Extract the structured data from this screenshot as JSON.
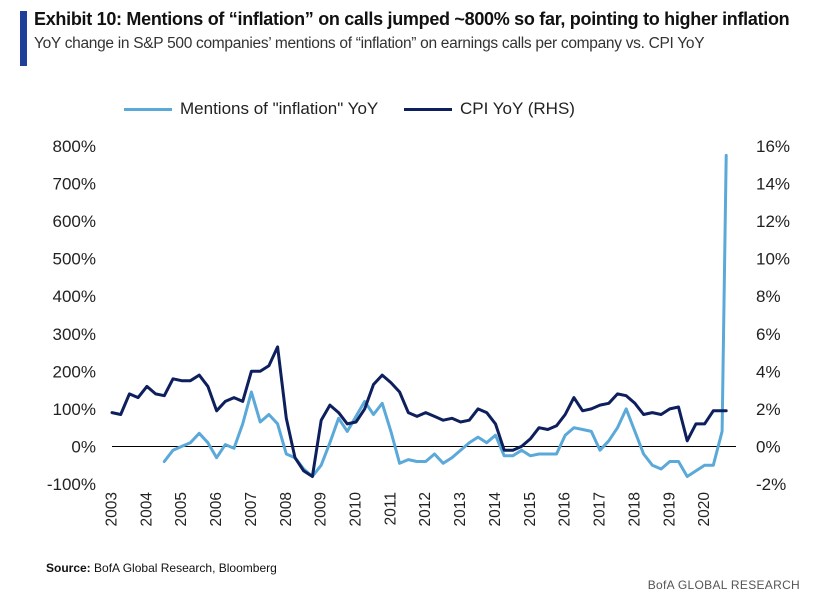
{
  "header": {
    "title": "Exhibit 10: Mentions of “inflation” on calls jumped ~800% so far, pointing to higher inflation",
    "subtitle": "YoY change in S&P 500 companies’ mentions of “inflation” on earnings calls per company vs. CPI YoY"
  },
  "footer": {
    "source_label": "Source:",
    "source_text": "BofA Global Research, Bloomberg",
    "brand": "BofA GLOBAL RESEARCH"
  },
  "colors": {
    "mentions": "#5aa9d9",
    "cpi": "#0d1f5c",
    "accent": "#1f3f99"
  },
  "chart_data": {
    "type": "line",
    "title": "",
    "xlabel": "",
    "ylabel": "",
    "x_ticks": [
      "2003",
      "2004",
      "2005",
      "2006",
      "2007",
      "2008",
      "2009",
      "2010",
      "2011",
      "2012",
      "2013",
      "2014",
      "2015",
      "2016",
      "2017",
      "2018",
      "2019",
      "2020"
    ],
    "xlim": [
      2003,
      2020.9
    ],
    "y_left": {
      "range": [
        -100,
        800
      ],
      "ticks": [
        -100,
        0,
        100,
        200,
        300,
        400,
        500,
        600,
        700,
        800
      ],
      "tick_labels": [
        "-100%",
        "0%",
        "100%",
        "200%",
        "300%",
        "400%",
        "500%",
        "600%",
        "700%",
        "800%"
      ]
    },
    "y_right": {
      "range": [
        -2,
        16
      ],
      "ticks": [
        -2,
        0,
        2,
        4,
        6,
        8,
        10,
        12,
        14,
        16
      ],
      "tick_labels": [
        "-2%",
        "0%",
        "2%",
        "4%",
        "6%",
        "8%",
        "10%",
        "12%",
        "14%",
        "16%"
      ]
    },
    "legend": {
      "position": "top"
    },
    "series": [
      {
        "name": "Mentions of \"inflation\" YoY",
        "axis": "left",
        "x": [
          2004.5,
          2004.75,
          2005.0,
          2005.25,
          2005.5,
          2005.75,
          2006.0,
          2006.25,
          2006.5,
          2006.75,
          2007.0,
          2007.25,
          2007.5,
          2007.75,
          2008.0,
          2008.25,
          2008.5,
          2008.75,
          2009.0,
          2009.25,
          2009.5,
          2009.75,
          2010.0,
          2010.25,
          2010.5,
          2010.75,
          2011.0,
          2011.25,
          2011.5,
          2011.75,
          2012.0,
          2012.25,
          2012.5,
          2012.75,
          2013.0,
          2013.25,
          2013.5,
          2013.75,
          2014.0,
          2014.25,
          2014.5,
          2014.75,
          2015.0,
          2015.25,
          2015.5,
          2015.75,
          2016.0,
          2016.25,
          2016.5,
          2016.75,
          2017.0,
          2017.25,
          2017.5,
          2017.75,
          2018.0,
          2018.25,
          2018.5,
          2018.75,
          2019.0,
          2019.25,
          2019.5,
          2019.75,
          2020.0,
          2020.25,
          2020.5,
          2020.62
        ],
        "y": [
          -40,
          -10,
          0,
          10,
          35,
          10,
          -30,
          5,
          -5,
          60,
          145,
          65,
          85,
          60,
          -20,
          -30,
          -60,
          -80,
          -50,
          10,
          75,
          40,
          80,
          120,
          85,
          115,
          40,
          -45,
          -35,
          -40,
          -40,
          -20,
          -45,
          -30,
          -10,
          10,
          25,
          10,
          30,
          -25,
          -25,
          -10,
          -25,
          -20,
          -20,
          -20,
          30,
          50,
          45,
          40,
          -10,
          15,
          50,
          100,
          40,
          -20,
          -50,
          -60,
          -40,
          -40,
          -80,
          -65,
          -50,
          -50,
          40,
          775
        ]
      },
      {
        "name": "CPI YoY (RHS)",
        "axis": "right",
        "x": [
          2003.0,
          2003.25,
          2003.5,
          2003.75,
          2004.0,
          2004.25,
          2004.5,
          2004.75,
          2005.0,
          2005.25,
          2005.5,
          2005.75,
          2006.0,
          2006.25,
          2006.5,
          2006.75,
          2007.0,
          2007.25,
          2007.5,
          2007.75,
          2008.0,
          2008.25,
          2008.5,
          2008.75,
          2009.0,
          2009.25,
          2009.5,
          2009.75,
          2010.0,
          2010.25,
          2010.5,
          2010.75,
          2011.0,
          2011.25,
          2011.5,
          2011.75,
          2012.0,
          2012.25,
          2012.5,
          2012.75,
          2013.0,
          2013.25,
          2013.5,
          2013.75,
          2014.0,
          2014.25,
          2014.5,
          2014.75,
          2015.0,
          2015.25,
          2015.5,
          2015.75,
          2016.0,
          2016.25,
          2016.5,
          2016.75,
          2017.0,
          2017.25,
          2017.5,
          2017.75,
          2018.0,
          2018.25,
          2018.5,
          2018.75,
          2019.0,
          2019.25,
          2019.5,
          2019.75,
          2020.0,
          2020.25,
          2020.5,
          2020.62
        ],
        "y": [
          1.8,
          1.7,
          2.8,
          2.6,
          3.2,
          2.8,
          2.7,
          3.6,
          3.5,
          3.5,
          3.8,
          3.2,
          1.9,
          2.4,
          2.6,
          2.4,
          4.0,
          4.0,
          4.3,
          5.3,
          1.5,
          -0.6,
          -1.3,
          -1.6,
          1.4,
          2.2,
          1.8,
          1.2,
          1.3,
          2.0,
          3.3,
          3.8,
          3.4,
          2.9,
          1.8,
          1.6,
          1.8,
          1.6,
          1.4,
          1.5,
          1.3,
          1.4,
          2.0,
          1.8,
          1.2,
          -0.2,
          -0.2,
          0.0,
          0.4,
          1.0,
          0.9,
          1.1,
          1.7,
          2.6,
          1.9,
          2.0,
          2.2,
          2.3,
          2.8,
          2.7,
          2.3,
          1.7,
          1.8,
          1.7,
          2.0,
          2.1,
          0.3,
          1.2,
          1.2,
          1.9,
          1.9,
          1.9
        ]
      }
    ]
  }
}
